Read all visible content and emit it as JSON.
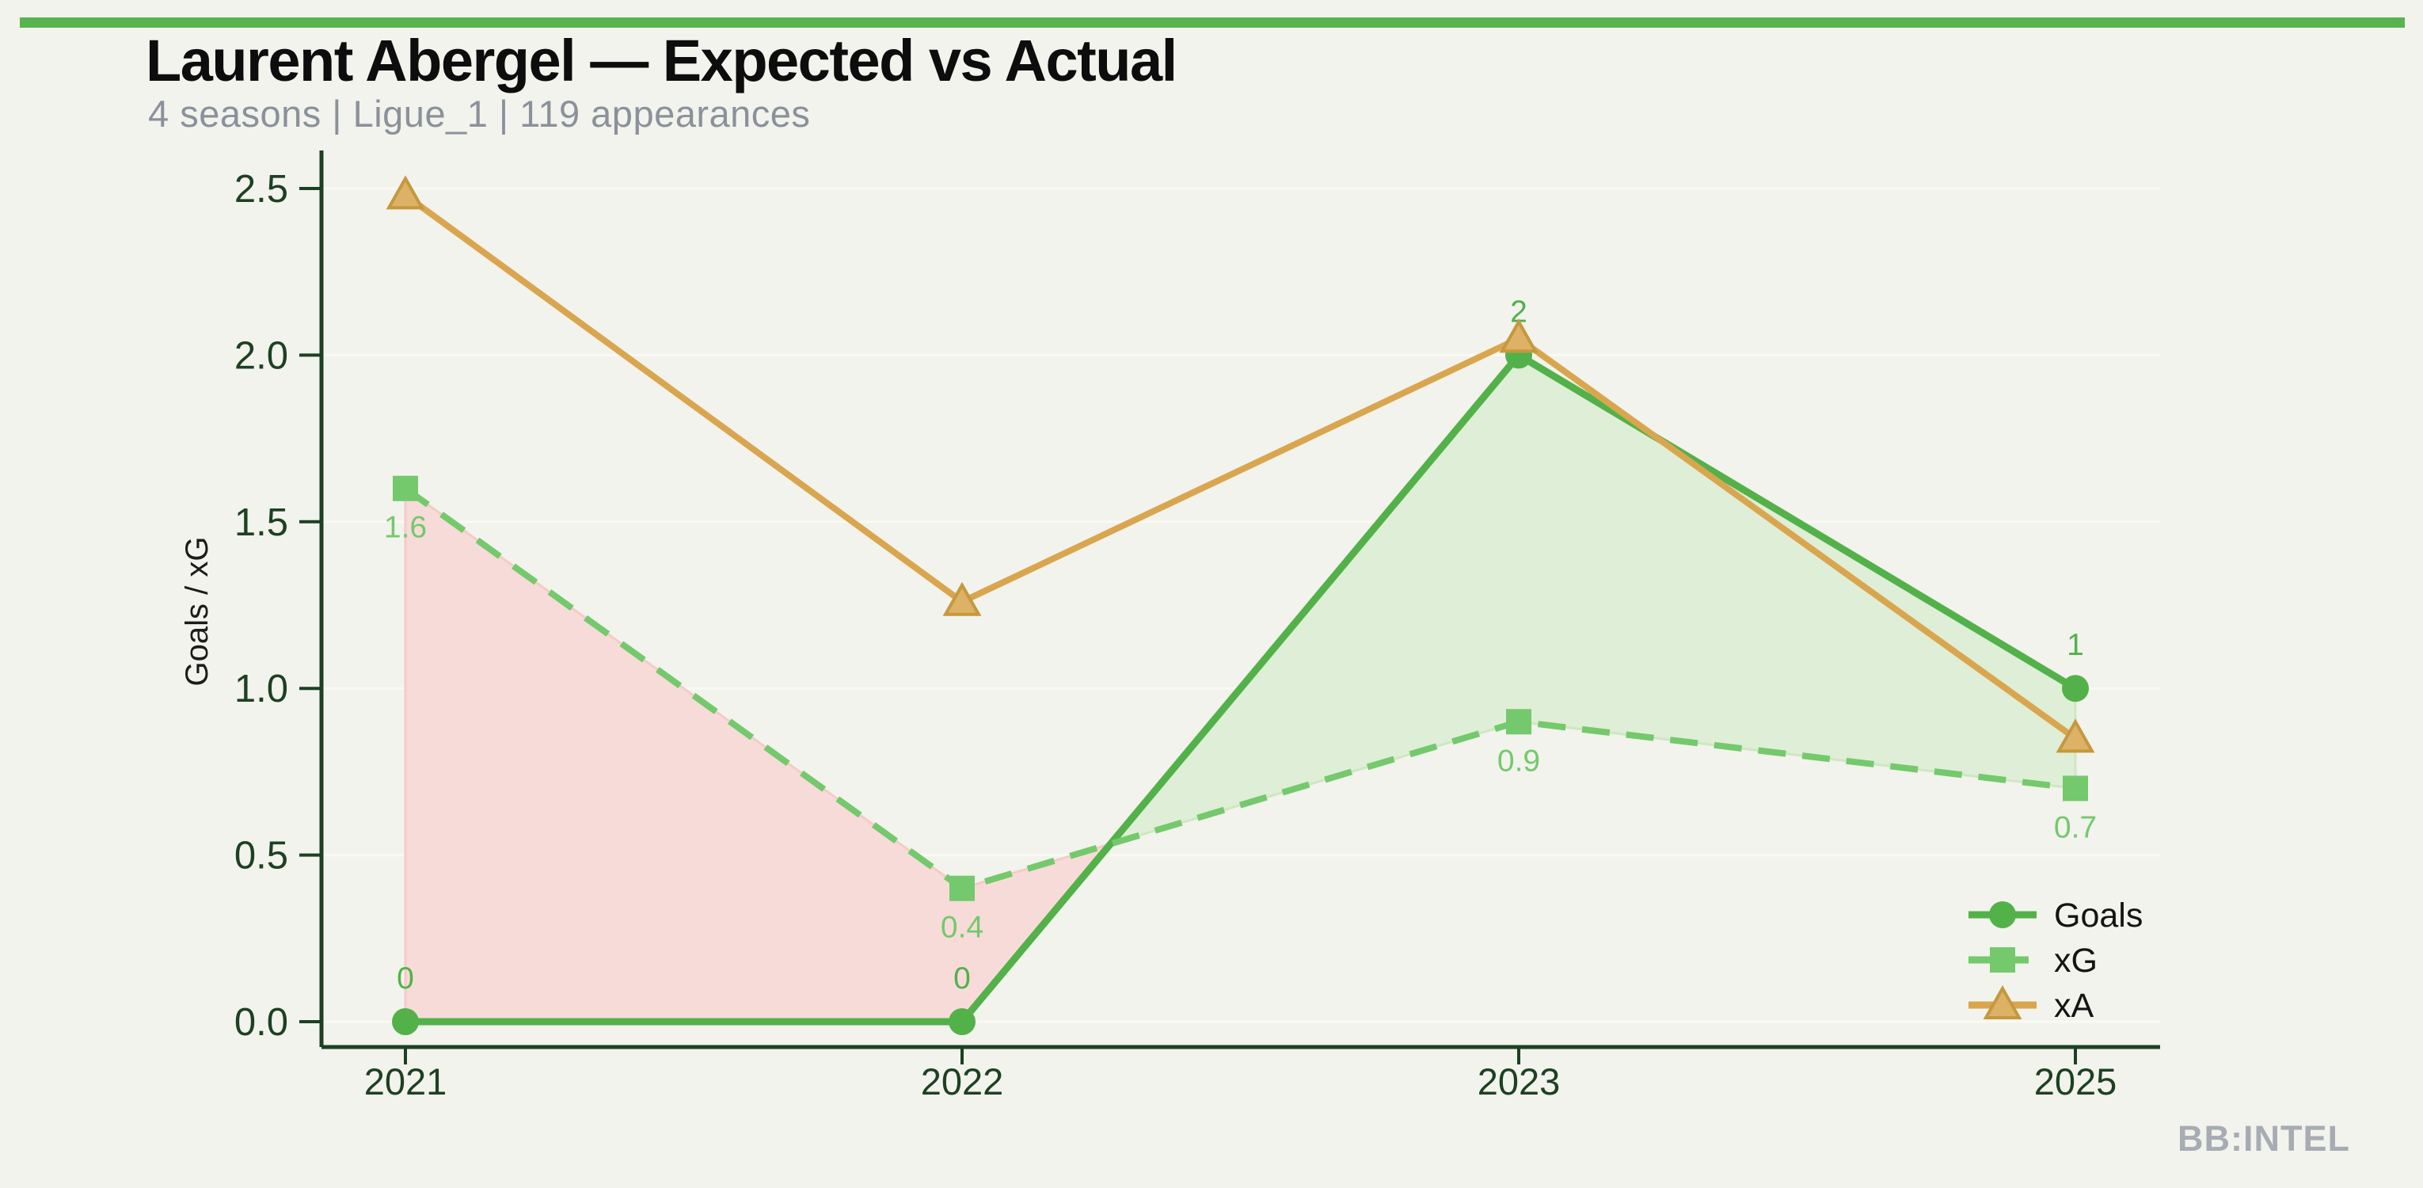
{
  "header": {
    "title": "Laurent Abergel — Expected vs Actual",
    "subtitle": "4 seasons | Ligue_1 | 119 appearances"
  },
  "watermark": "BB:INTEL",
  "style": {
    "background": "#f2f3ec",
    "topbar_color": "#58b44e",
    "axis_color": "#1d4023",
    "grid_color": "#f9faf3",
    "title_color": "#0d0d0d",
    "subtitle_color": "#8b919b",
    "watermark_color": "#a7acb4",
    "fill_under_color": "#f7dbd8",
    "fill_under_edge": "#f3cbc7",
    "fill_over_color": "#dfeed6",
    "fill_over_edge": "#cfe7c3"
  },
  "chart_data": {
    "type": "line",
    "title": "Laurent Abergel — Expected vs Actual",
    "categories": [
      "2021",
      "2022",
      "2023",
      "2025"
    ],
    "series": [
      {
        "name": "Goals",
        "values": [
          0,
          0,
          2,
          1
        ],
        "labels": [
          "0",
          "0",
          "2",
          "1"
        ],
        "label_position": "above",
        "color": "#53b14a",
        "marker": "circle",
        "line_style": "solid",
        "line_width": 9
      },
      {
        "name": "xG",
        "values": [
          1.6,
          0.4,
          0.9,
          0.7
        ],
        "labels": [
          "1.6",
          "0.4",
          "0.9",
          "0.7"
        ],
        "label_position": "below",
        "color": "#74c96c",
        "marker": "square",
        "line_style": "dashed",
        "line_width": 8
      },
      {
        "name": "xA",
        "values": [
          2.48,
          1.26,
          2.05,
          0.85
        ],
        "labels": [],
        "label_position": "none",
        "color": "#d9a64f",
        "marker": "triangle",
        "marker_fill": "#ddb166",
        "marker_edge": "#c6983e",
        "line_style": "solid",
        "line_width": 8
      }
    ],
    "xlabel": "",
    "ylabel": "Goals / xG",
    "yticks": [
      0.0,
      0.5,
      1.0,
      1.5,
      2.0,
      2.5
    ],
    "ylim": [
      0,
      2.5
    ],
    "grid": "horizontal-faint",
    "legend_position": "lower right",
    "legend_entries": [
      "Goals",
      "xG",
      "xA"
    ],
    "fill_between": {
      "series_a": "Goals",
      "series_b": "xG",
      "over_meaning": "Goals above xG",
      "under_meaning": "Goals below xG"
    }
  }
}
